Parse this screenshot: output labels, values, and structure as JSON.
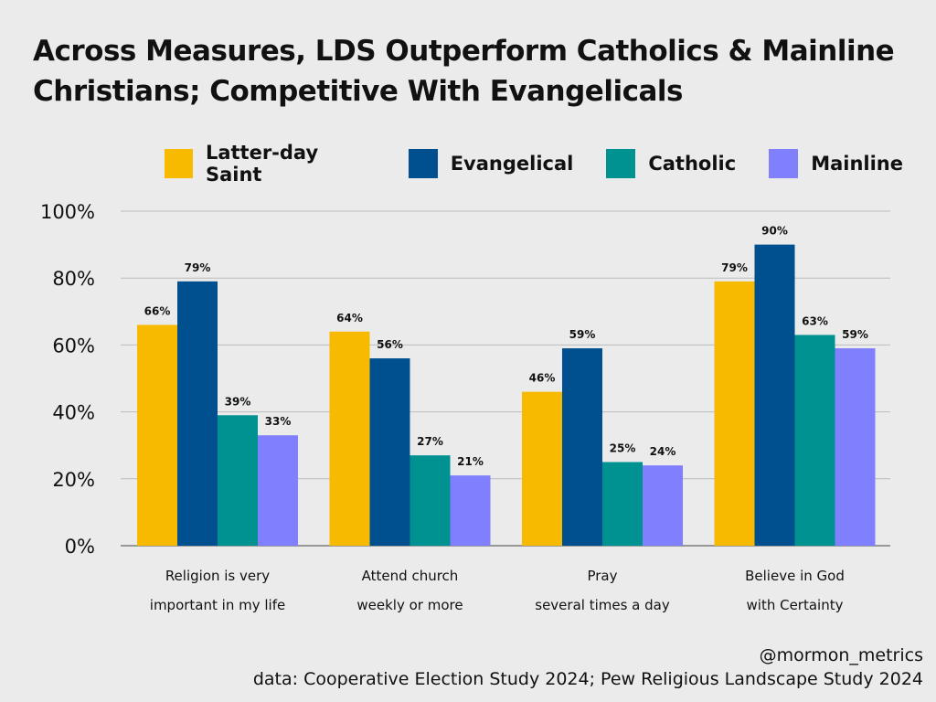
{
  "title_line1": "Across Measures, LDS Outperform Catholics & Mainline",
  "title_line2": "Christians; Competitive With Evangelicals",
  "credit": "@mormon_metrics",
  "source": "data: Cooperative Election Study 2024; Pew Religious Landscape Study 2024",
  "chart_data": {
    "type": "bar",
    "title": "Across Measures, LDS Outperform Catholics & Mainline Christians; Competitive With Evangelicals",
    "categories": [
      [
        "Religion is very",
        "important in my life"
      ],
      [
        "Attend church",
        "weekly or more"
      ],
      [
        "Pray",
        "several times a day"
      ],
      [
        "Believe in God",
        "with Certainty"
      ]
    ],
    "series": [
      {
        "name": "Latter-day Saint",
        "color": "#F7BA00",
        "values": [
          66,
          64,
          46,
          79
        ]
      },
      {
        "name": "Evangelical",
        "color": "#00508F",
        "values": [
          79,
          56,
          59,
          90
        ]
      },
      {
        "name": "Catholic",
        "color": "#009191",
        "values": [
          39,
          27,
          25,
          63
        ]
      },
      {
        "name": "Mainline",
        "color": "#8080FF",
        "values": [
          33,
          21,
          24,
          59
        ]
      }
    ],
    "yticks": [
      "0%",
      "20%",
      "40%",
      "60%",
      "80%",
      "100%"
    ],
    "ylim": [
      0,
      100
    ],
    "legend": "top",
    "grid": true
  }
}
